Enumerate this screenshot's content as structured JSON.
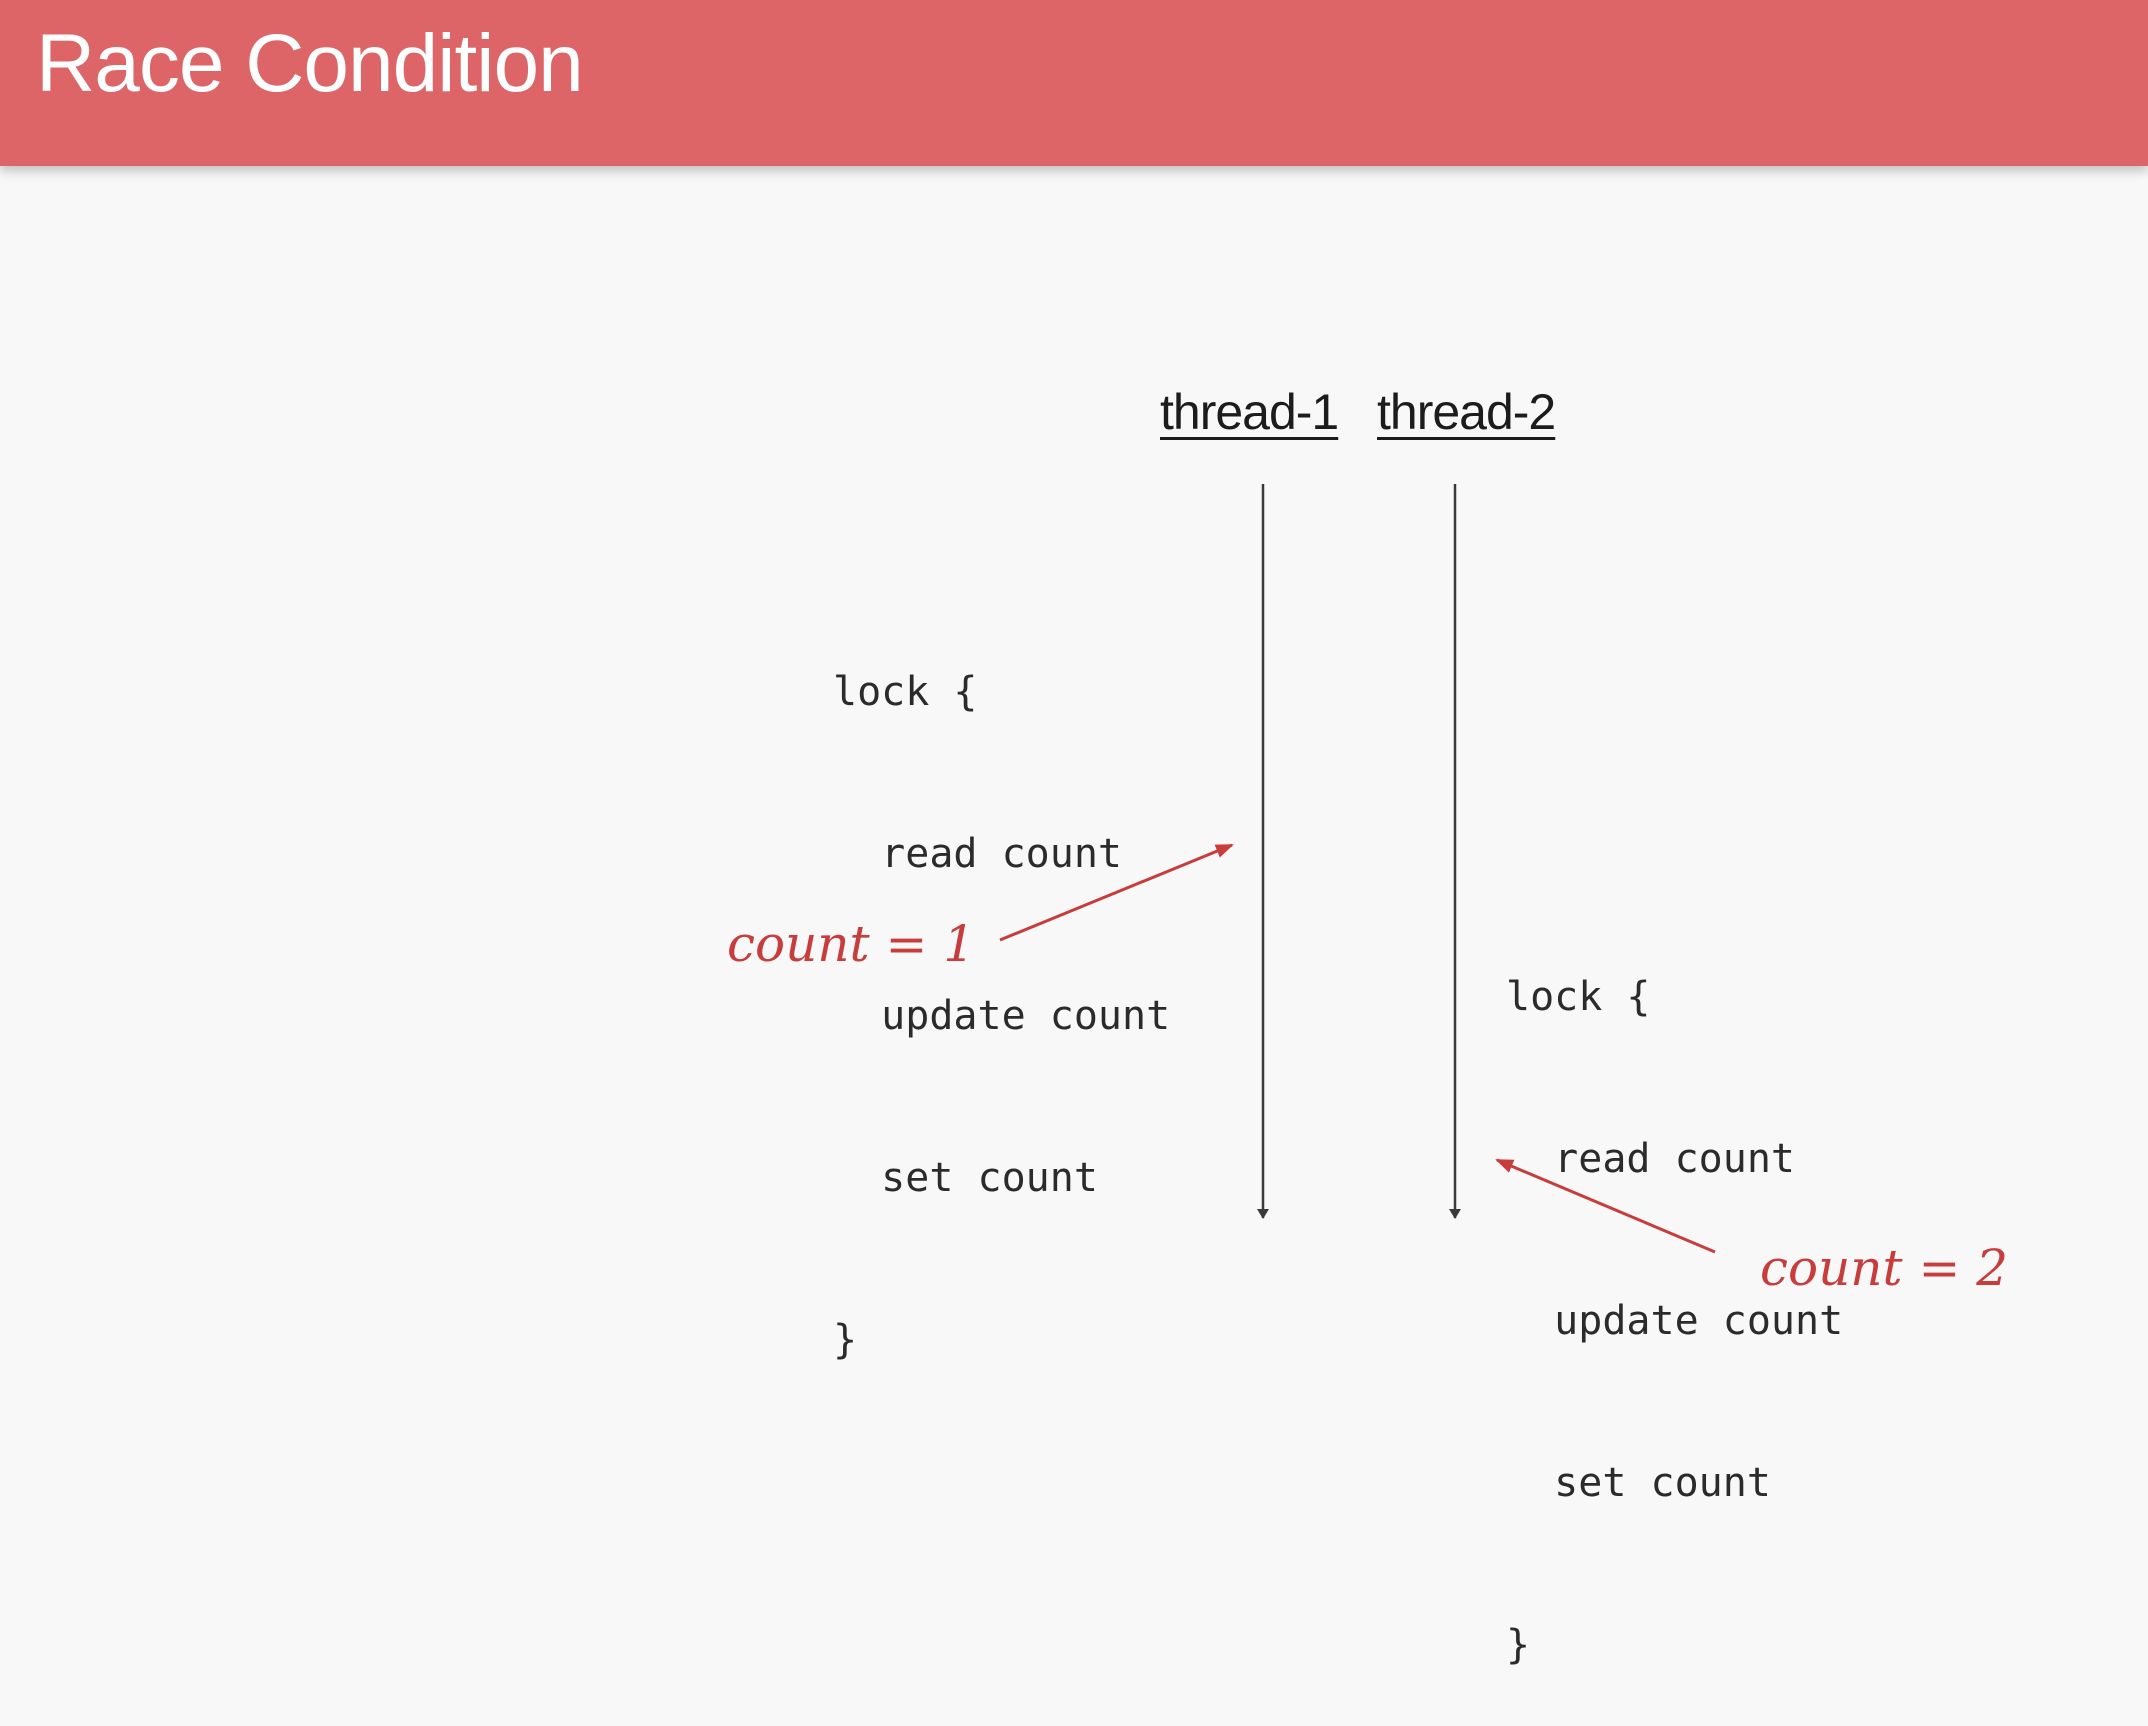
{
  "header": {
    "title": "Race Condition"
  },
  "threads": [
    {
      "label": "thread-1"
    },
    {
      "label": "thread-2"
    }
  ],
  "code_blocks": [
    {
      "lines": [
        "lock {",
        "  read count",
        "  update count",
        "  set count",
        "}"
      ]
    },
    {
      "lines": [
        "lock {",
        "  read count",
        "  update count",
        "  set count",
        "}"
      ]
    }
  ],
  "annotations": [
    {
      "text": "count = 1"
    },
    {
      "text": "count = 2"
    }
  ],
  "colors": {
    "header": "#dd6567",
    "background": "#f8f8f8",
    "annotation": "#c83c3c",
    "timeline": "#3a3a3a"
  }
}
